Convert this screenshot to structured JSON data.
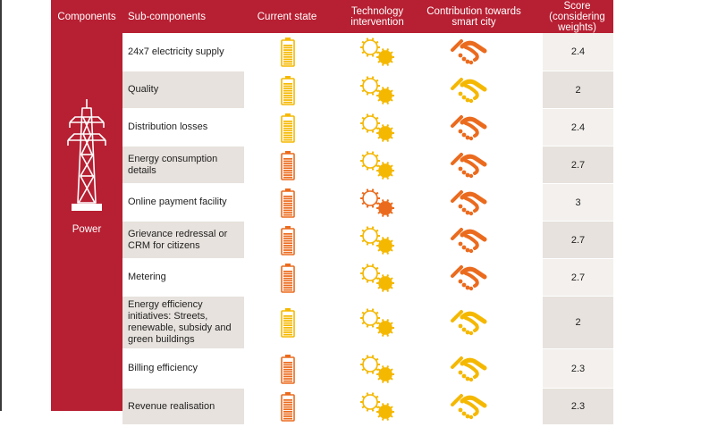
{
  "headers": {
    "components": "Components",
    "subcomponents": "Sub-components",
    "current_state": "Current state",
    "technology": "Technology intervention",
    "contribution": "Contribution towards smart city",
    "score": "Score (considering weights)"
  },
  "component_label": "Power",
  "colors": {
    "red": "#b71f32",
    "yellow": "#f5b800",
    "orange": "#eb6b1e",
    "shade": "#e7e2dd"
  },
  "rows": [
    {
      "label": "24x7 electricity supply",
      "score": "2.4",
      "battery": "yellow",
      "gear": "yellow",
      "hands": "orange"
    },
    {
      "label": "Quality",
      "score": "2",
      "battery": "yellow",
      "gear": "yellow",
      "hands": "yellow"
    },
    {
      "label": "Distribution losses",
      "score": "2.4",
      "battery": "yellow",
      "gear": "yellow",
      "hands": "orange"
    },
    {
      "label": "Energy consumption details",
      "score": "2.7",
      "battery": "orange",
      "gear": "yellow",
      "hands": "orange"
    },
    {
      "label": "Online payment facility",
      "score": "3",
      "battery": "orange",
      "gear": "orange",
      "hands": "orange"
    },
    {
      "label": "Grievance redressal or CRM for citizens",
      "score": "2.7",
      "battery": "orange",
      "gear": "yellow",
      "hands": "orange"
    },
    {
      "label": "Metering",
      "score": "2.7",
      "battery": "orange",
      "gear": "yellow",
      "hands": "orange"
    },
    {
      "label": "Energy efficiency initiatives: Streets, renewable, subsidy and green buildings",
      "score": "2",
      "battery": "yellow",
      "gear": "yellow",
      "hands": "yellow"
    },
    {
      "label": "Billing efficiency",
      "score": "2.3",
      "battery": "orange",
      "gear": "yellow",
      "hands": "yellow"
    },
    {
      "label": "Revenue realisation",
      "score": "2.3",
      "battery": "orange",
      "gear": "yellow",
      "hands": "yellow"
    }
  ]
}
